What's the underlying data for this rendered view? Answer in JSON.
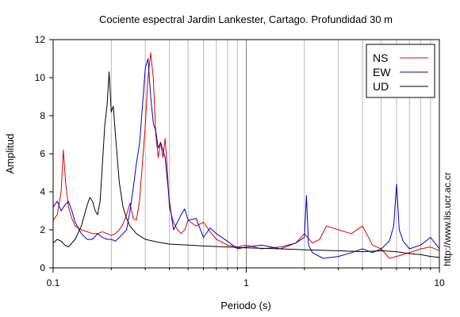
{
  "chart_data": {
    "type": "line",
    "title": "Cociente espectral Jardin Lankester, Cartago. Profundidad 30 m",
    "xlabel": "Periodo (s)",
    "ylabel": "Amplitud",
    "xscale": "log",
    "xlim": [
      0.1,
      10
    ],
    "ylim": [
      0,
      12
    ],
    "x_ticks": [
      0.1,
      1,
      10
    ],
    "x_tick_labels": [
      "0.1",
      "1",
      "10"
    ],
    "y_ticks": [
      0,
      2,
      4,
      6,
      8,
      10,
      12
    ],
    "y_tick_labels": [
      "0",
      "2",
      "4",
      "6",
      "8",
      "10",
      "12"
    ],
    "grid": "vertical log gridlines",
    "legend_position": "top-right",
    "credit": "http://www.lis.ucr.ac.cr",
    "series": [
      {
        "name": "NS",
        "color": "#e00000",
        "x": [
          0.1,
          0.105,
          0.11,
          0.113,
          0.116,
          0.12,
          0.125,
          0.13,
          0.14,
          0.15,
          0.16,
          0.17,
          0.18,
          0.19,
          0.2,
          0.21,
          0.22,
          0.23,
          0.24,
          0.25,
          0.26,
          0.27,
          0.28,
          0.29,
          0.3,
          0.31,
          0.32,
          0.33,
          0.34,
          0.35,
          0.36,
          0.37,
          0.38,
          0.39,
          0.4,
          0.42,
          0.44,
          0.46,
          0.48,
          0.5,
          0.55,
          0.6,
          0.65,
          0.7,
          0.8,
          0.9,
          1.0,
          1.2,
          1.5,
          1.8,
          2.0,
          2.2,
          2.4,
          2.6,
          3.0,
          3.5,
          4.0,
          4.5,
          5.0,
          5.5,
          6.0,
          7.0,
          8.0,
          9.0,
          10.0
        ],
        "y": [
          2.5,
          2.8,
          4.0,
          6.2,
          4.5,
          3.2,
          2.6,
          2.2,
          2.0,
          1.9,
          1.8,
          1.8,
          1.9,
          1.8,
          1.7,
          1.8,
          2.0,
          2.3,
          2.8,
          3.4,
          2.6,
          2.5,
          3.5,
          5.5,
          7.5,
          10.0,
          11.3,
          10.0,
          7.0,
          5.8,
          6.6,
          5.8,
          6.8,
          5.2,
          3.2,
          2.4,
          2.0,
          1.8,
          2.0,
          2.5,
          2.2,
          2.4,
          1.9,
          1.5,
          1.2,
          1.1,
          1.2,
          1.0,
          1.1,
          1.3,
          1.8,
          1.3,
          1.5,
          2.2,
          2.0,
          1.8,
          2.2,
          1.2,
          1.0,
          0.5,
          0.6,
          0.8,
          1.0,
          1.1,
          0.9
        ]
      },
      {
        "name": "EW",
        "color": "#0000cc",
        "x": [
          0.1,
          0.105,
          0.11,
          0.115,
          0.12,
          0.125,
          0.13,
          0.14,
          0.15,
          0.16,
          0.17,
          0.18,
          0.19,
          0.2,
          0.21,
          0.22,
          0.23,
          0.24,
          0.25,
          0.26,
          0.27,
          0.28,
          0.29,
          0.3,
          0.31,
          0.32,
          0.33,
          0.34,
          0.35,
          0.36,
          0.38,
          0.4,
          0.42,
          0.44,
          0.46,
          0.48,
          0.5,
          0.55,
          0.6,
          0.65,
          0.7,
          0.8,
          0.9,
          1.0,
          1.2,
          1.5,
          1.8,
          2.0,
          2.05,
          2.1,
          2.2,
          2.5,
          3.0,
          3.5,
          4.0,
          4.5,
          5.0,
          5.5,
          5.8,
          6.0,
          6.2,
          6.5,
          7.0,
          8.0,
          9.0,
          10.0
        ],
        "y": [
          3.2,
          3.5,
          3.0,
          3.3,
          3.5,
          3.0,
          2.4,
          1.8,
          1.5,
          1.5,
          1.8,
          1.6,
          1.5,
          1.5,
          1.4,
          1.6,
          1.8,
          2.0,
          3.0,
          4.2,
          5.5,
          6.5,
          8.5,
          10.5,
          11.0,
          9.0,
          7.6,
          7.2,
          6.3,
          6.6,
          5.8,
          3.5,
          2.0,
          2.4,
          2.8,
          3.1,
          2.5,
          2.6,
          1.6,
          2.1,
          1.8,
          1.4,
          1.0,
          1.1,
          1.2,
          1.0,
          1.3,
          1.6,
          3.8,
          1.2,
          0.8,
          0.5,
          0.6,
          0.8,
          1.0,
          0.8,
          1.0,
          1.4,
          2.2,
          4.4,
          2.0,
          1.4,
          1.0,
          1.2,
          1.6,
          1.0
        ]
      },
      {
        "name": "UD",
        "color": "#000000",
        "x": [
          0.1,
          0.105,
          0.11,
          0.115,
          0.12,
          0.13,
          0.14,
          0.15,
          0.155,
          0.16,
          0.165,
          0.17,
          0.175,
          0.18,
          0.185,
          0.19,
          0.195,
          0.2,
          0.205,
          0.21,
          0.22,
          0.23,
          0.24,
          0.25,
          0.27,
          0.3,
          0.35,
          0.4,
          0.5,
          0.6,
          0.8,
          1.0,
          1.5,
          2.0,
          3.0,
          4.0,
          5.0,
          6.0,
          7.0,
          8.0,
          9.0,
          10.0
        ],
        "y": [
          1.3,
          1.5,
          1.4,
          1.2,
          1.1,
          1.5,
          2.2,
          3.3,
          3.7,
          3.5,
          3.0,
          2.8,
          3.5,
          5.5,
          7.5,
          8.5,
          10.3,
          8.2,
          8.5,
          7.0,
          4.5,
          3.2,
          2.6,
          2.2,
          1.8,
          1.5,
          1.35,
          1.25,
          1.2,
          1.15,
          1.1,
          1.05,
          1.0,
          0.95,
          0.9,
          0.85,
          0.9,
          0.85,
          0.75,
          0.7,
          0.6,
          0.55
        ]
      }
    ]
  }
}
